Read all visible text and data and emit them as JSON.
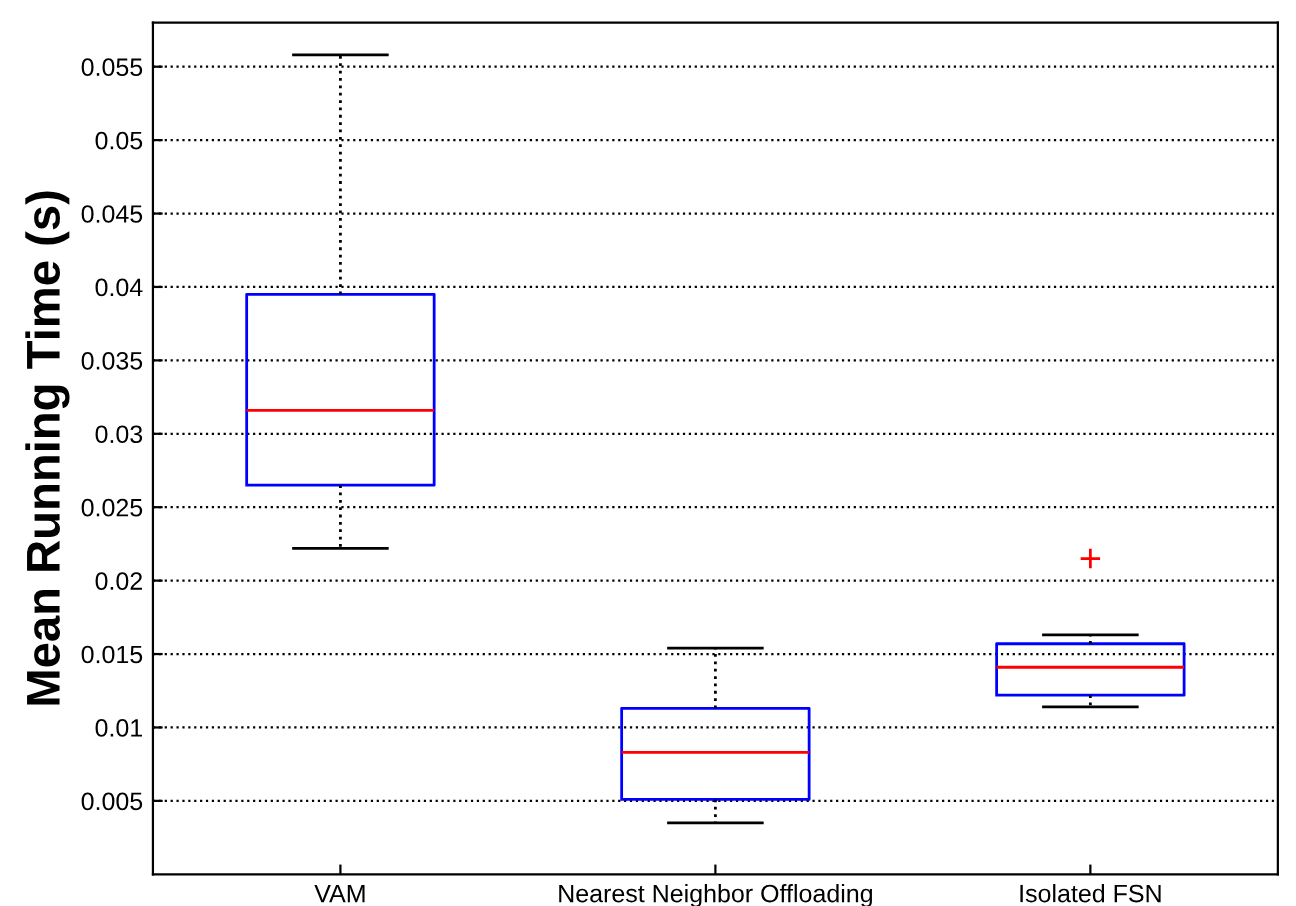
{
  "chart_data": {
    "type": "box",
    "ylabel": "Mean Running Time (s)",
    "categories": [
      "VAM",
      "Nearest Neighbor Offloading",
      "Isolated FSN"
    ],
    "boxes": [
      {
        "low": 0.0222,
        "q1": 0.0265,
        "median": 0.0316,
        "q3": 0.0395,
        "high": 0.0558
      },
      {
        "low": 0.0035,
        "q1": 0.0051,
        "median": 0.0083,
        "q3": 0.0113,
        "high": 0.0154
      },
      {
        "low": 0.0114,
        "q1": 0.0122,
        "median": 0.0141,
        "q3": 0.0157,
        "high": 0.0163,
        "outliers": [
          0.0215
        ]
      }
    ],
    "color": "#0000ff",
    "ylim": [
      0,
      0.058
    ],
    "yticks": [
      0.005,
      0.01,
      0.015,
      0.02,
      0.025,
      0.03,
      0.035,
      0.04,
      0.045,
      0.05,
      0.055
    ],
    "grid": "y"
  }
}
